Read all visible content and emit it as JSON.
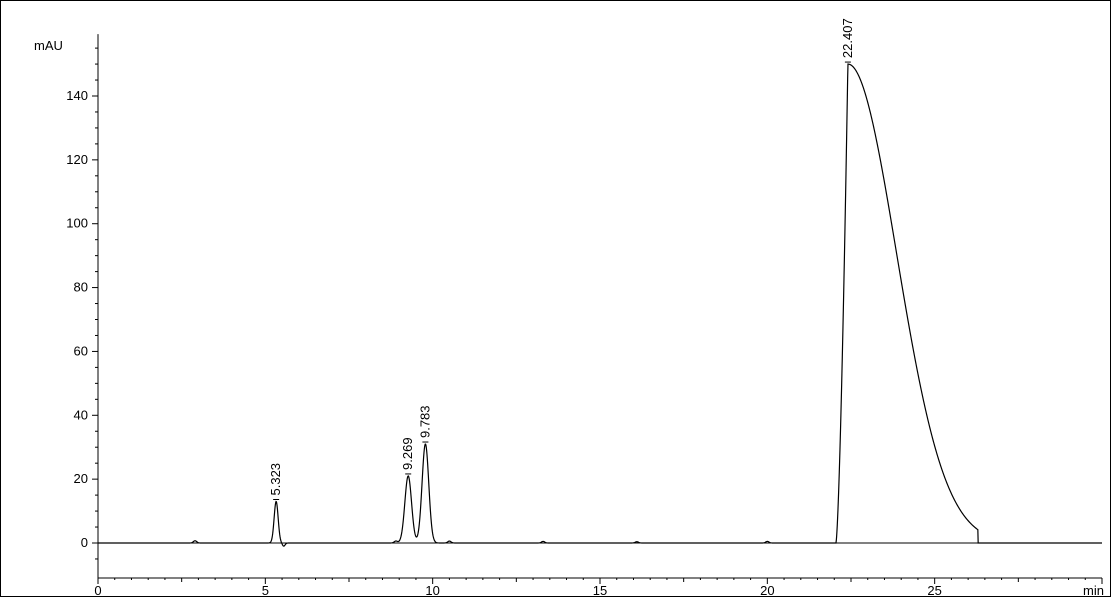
{
  "chart_data": {
    "type": "line",
    "title": "",
    "xlabel": "min",
    "ylabel": "mAU",
    "xlim": [
      0,
      30
    ],
    "ylim": [
      -8,
      160
    ],
    "x_ticks": [
      0,
      5,
      10,
      15,
      20,
      25
    ],
    "x_tick_labels": [
      "0",
      "5",
      "10",
      "15",
      "20",
      "25"
    ],
    "y_ticks": [
      0,
      20,
      40,
      60,
      80,
      100,
      120,
      140
    ],
    "y_tick_labels": [
      "0",
      "20",
      "40",
      "60",
      "80",
      "100",
      "120",
      "140"
    ],
    "grid": false,
    "legend": "none",
    "baseline": 0,
    "series_color": "#000000",
    "peaks": [
      {
        "label": "5.323",
        "rt": 5.323,
        "height": 13,
        "width": 0.06
      },
      {
        "label": "9.269",
        "rt": 9.269,
        "height": 21,
        "width": 0.1
      },
      {
        "label": "9.783",
        "rt": 9.783,
        "height": 31,
        "width": 0.1
      },
      {
        "label": "22.407",
        "rt": 22.407,
        "height": 150,
        "start": 22.05,
        "end": 26.3
      }
    ]
  }
}
